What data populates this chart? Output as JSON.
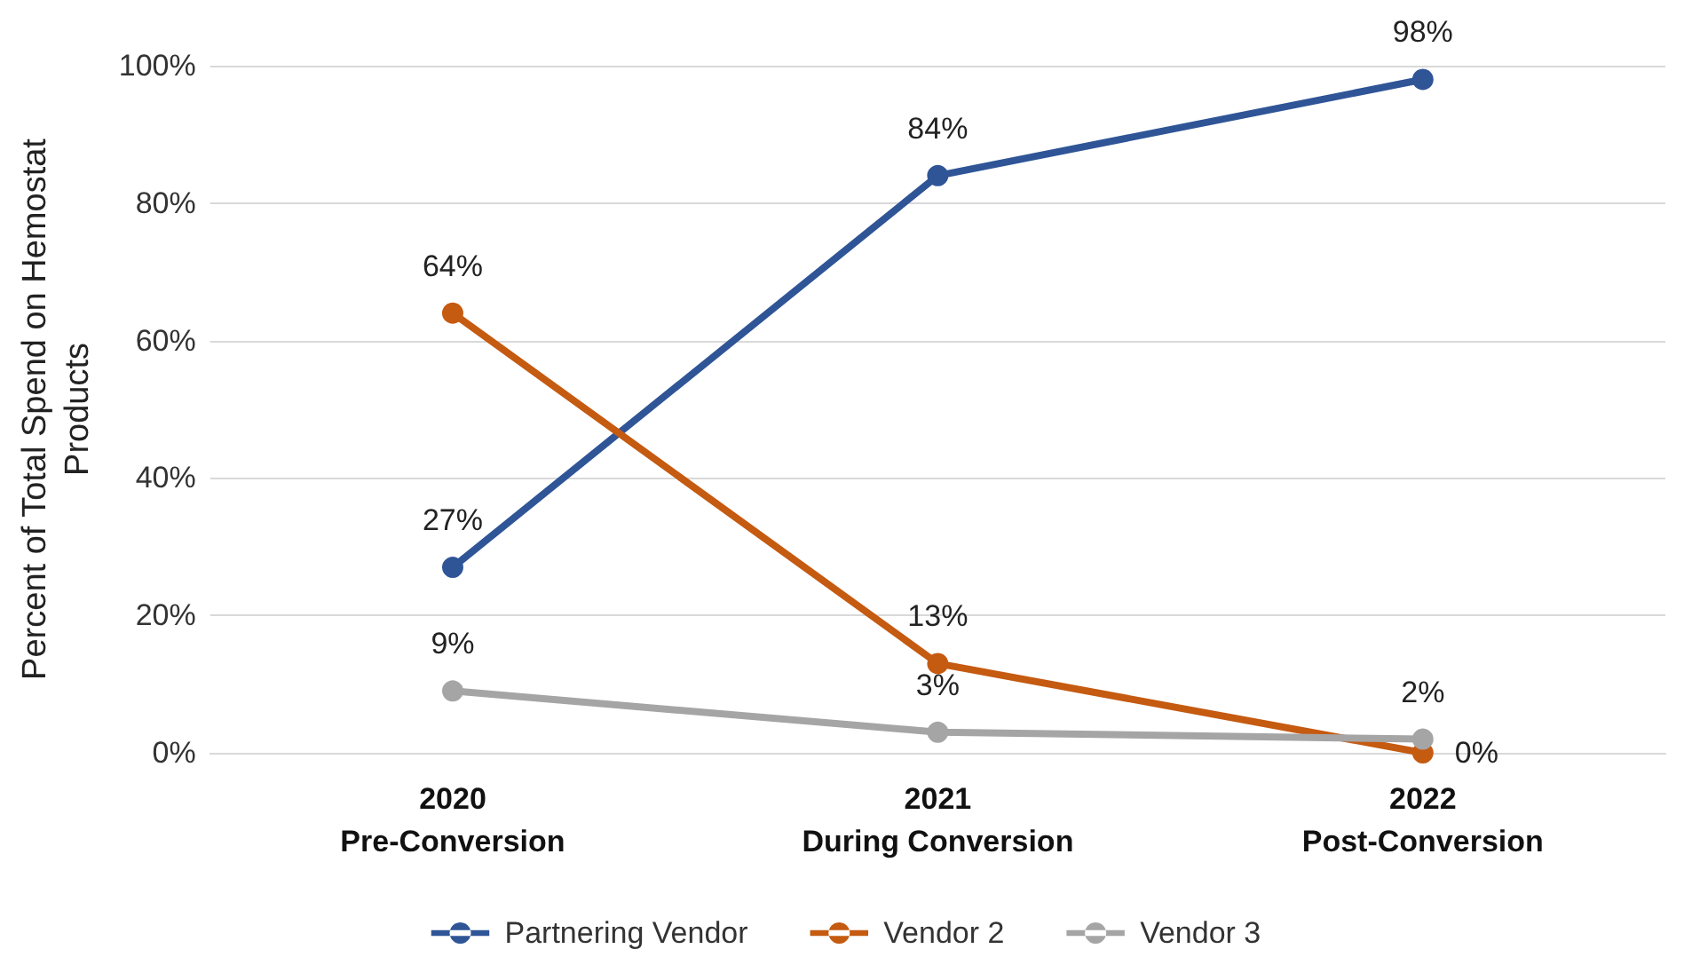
{
  "chart_data": {
    "type": "line",
    "ylabel": "Percent of Total Spend on Hemostat\nProducts",
    "categories": [
      "2020\nPre-Conversion",
      "2021\nDuring Conversion",
      "2022\nPost-Conversion"
    ],
    "series": [
      {
        "name": "Partnering Vendor",
        "color": "#2f5597",
        "values": [
          27,
          84,
          98
        ],
        "value_labels": [
          "27%",
          "84%",
          "98%"
        ]
      },
      {
        "name": "Vendor 2",
        "color": "#c55a11",
        "values": [
          64,
          13,
          0
        ],
        "value_labels": [
          "64%",
          "13%",
          "0%"
        ]
      },
      {
        "name": "Vendor 3",
        "color": "#a5a5a5",
        "values": [
          9,
          3,
          2
        ],
        "value_labels": [
          "9%",
          "3%",
          "2%"
        ]
      }
    ],
    "ylim": [
      0,
      100
    ],
    "yticks": [
      {
        "value": 0,
        "label": "0%"
      },
      {
        "value": 20,
        "label": "20%"
      },
      {
        "value": 40,
        "label": "40%"
      },
      {
        "value": 60,
        "label": "60%"
      },
      {
        "value": 80,
        "label": "80%"
      },
      {
        "value": 100,
        "label": "100%"
      }
    ],
    "grid": "y",
    "legend": "bottom",
    "marker": "circle",
    "line_style": "solid"
  }
}
